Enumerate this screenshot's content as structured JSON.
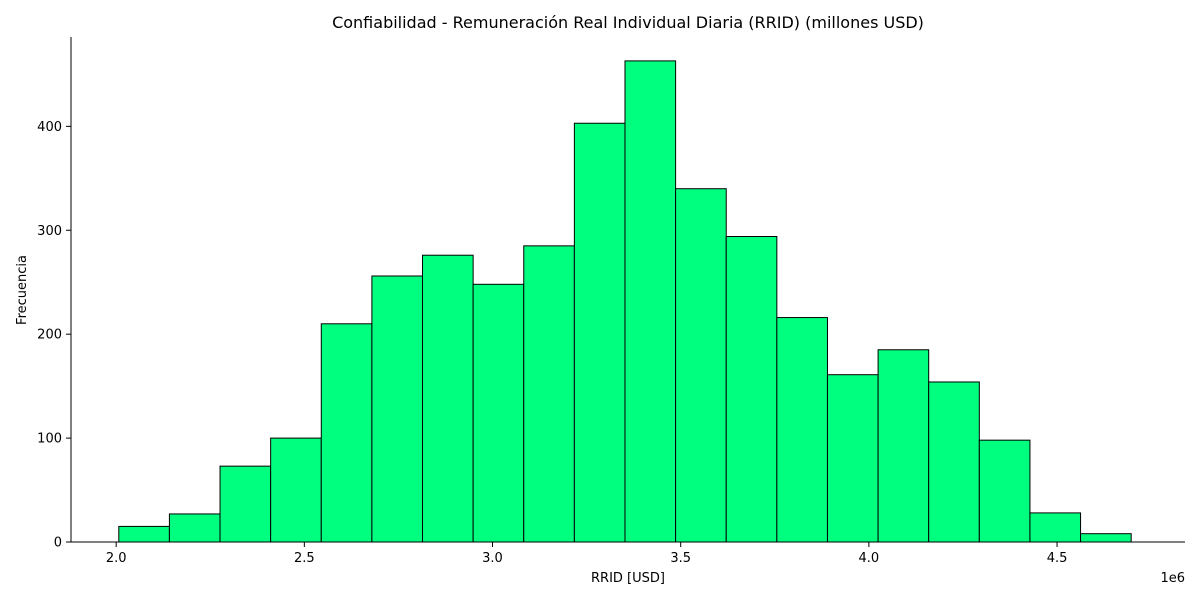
{
  "chart_data": {
    "type": "bar",
    "title": "Confiabilidad - Remuneración Real Individual Diaria (RRID) (millones USD)",
    "xlabel": "RRID [USD]",
    "ylabel": "Frecuencia",
    "x_offset_label": "1e6",
    "bar_color": "#00ff7f",
    "edge_color": "#000000",
    "bin_edges": [
      2.007,
      2.1415,
      2.276,
      2.4105,
      2.545,
      2.6795,
      2.814,
      2.9485,
      3.083,
      3.2175,
      3.352,
      3.4865,
      3.621,
      3.7555,
      3.89,
      4.0245,
      4.159,
      4.2935,
      4.428,
      4.5625,
      4.697
    ],
    "values": [
      15,
      27,
      73,
      100,
      210,
      256,
      276,
      248,
      285,
      403,
      463,
      340,
      294,
      216,
      161,
      185,
      154,
      98,
      28,
      8
    ],
    "xlim": [
      1.88,
      4.84
    ],
    "ylim": [
      0,
      486
    ],
    "x_ticks": [
      2.0,
      2.5,
      3.0,
      3.5,
      4.0,
      4.5
    ],
    "x_tick_labels": [
      "2.0",
      "2.5",
      "3.0",
      "3.5",
      "4.0",
      "4.5"
    ],
    "y_ticks": [
      0,
      100,
      200,
      300,
      400
    ],
    "y_tick_labels": [
      "0",
      "100",
      "200",
      "300",
      "400"
    ],
    "grid": false,
    "legend": "none"
  }
}
